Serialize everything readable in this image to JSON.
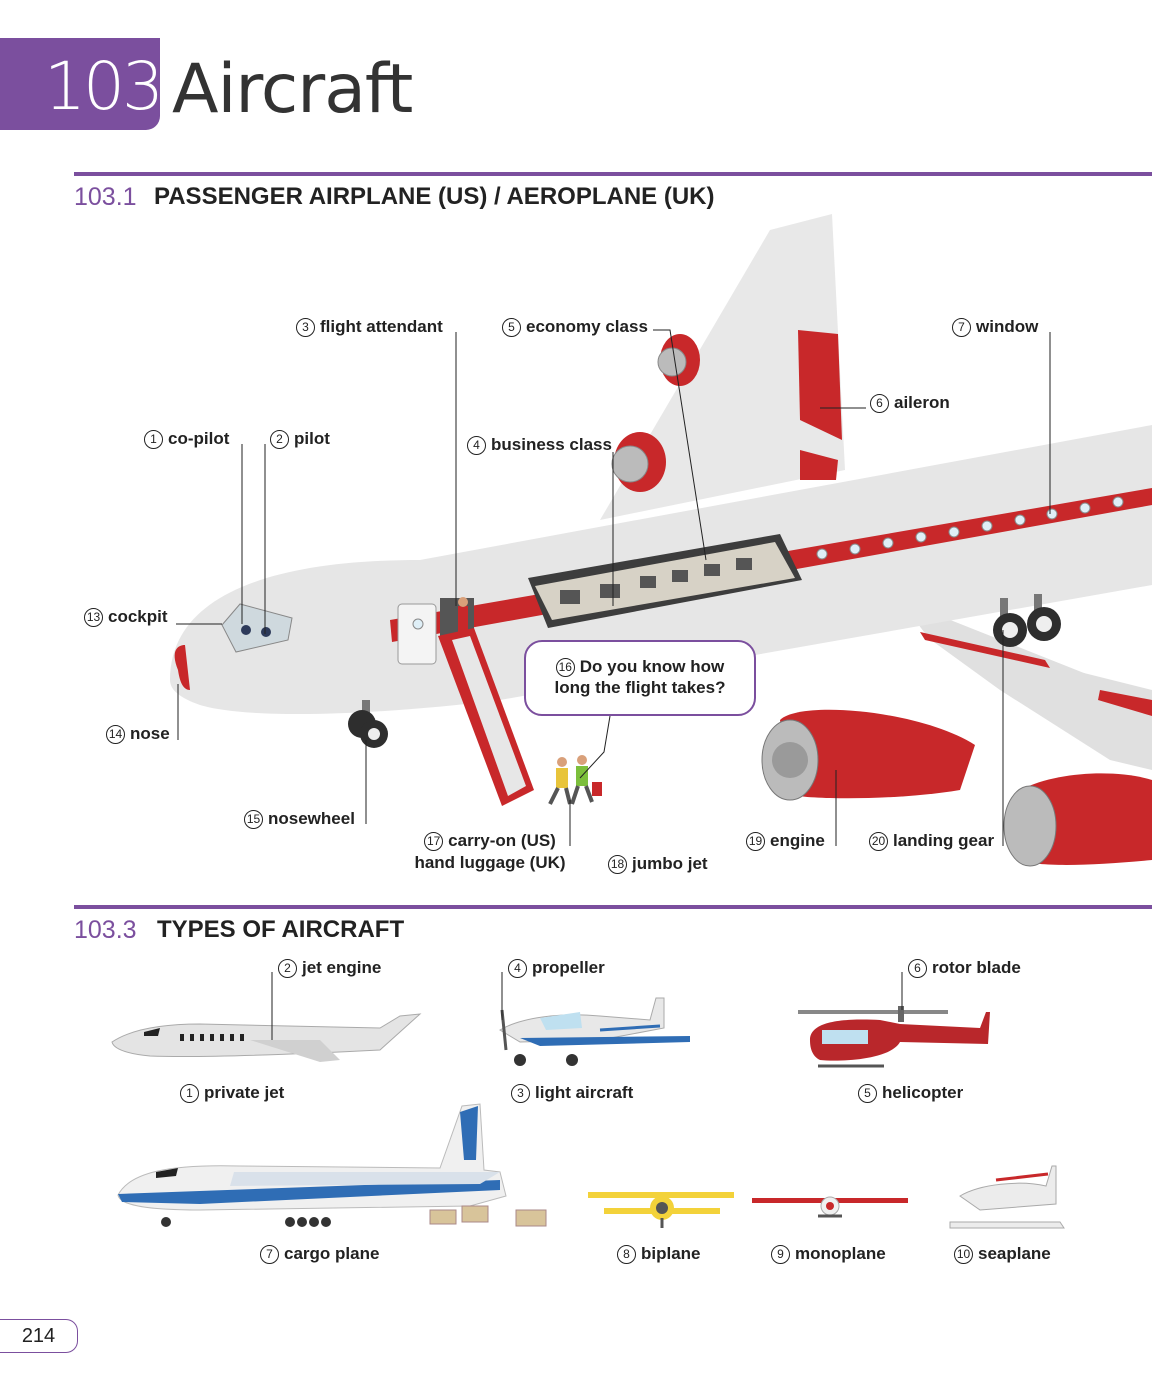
{
  "header": {
    "chapter_number": "103",
    "chapter_title": "Aircraft"
  },
  "section1": {
    "number": "103.1",
    "title": "PASSENGER AIRPLANE (US) / AEROPLANE (UK)",
    "labels": [
      {
        "n": "1",
        "text": "co-pilot"
      },
      {
        "n": "2",
        "text": "pilot"
      },
      {
        "n": "3",
        "text": "flight attendant"
      },
      {
        "n": "4",
        "text": "business class"
      },
      {
        "n": "5",
        "text": "economy class"
      },
      {
        "n": "6",
        "text": "aileron"
      },
      {
        "n": "7",
        "text": "window"
      },
      {
        "n": "13",
        "text": "cockpit"
      },
      {
        "n": "14",
        "text": "nose"
      },
      {
        "n": "15",
        "text": "nosewheel"
      },
      {
        "n": "17",
        "text": "carry-on (US)",
        "text2": "hand luggage (UK)"
      },
      {
        "n": "18",
        "text": "jumbo jet"
      },
      {
        "n": "19",
        "text": "engine"
      },
      {
        "n": "20",
        "text": "landing gear"
      }
    ],
    "speech": {
      "n": "16",
      "line1": "Do you know how",
      "line2": "long the flight takes?"
    }
  },
  "section3": {
    "number": "103.3",
    "title": "TYPES OF AIRCRAFT",
    "labels": [
      {
        "n": "1",
        "text": "private jet"
      },
      {
        "n": "2",
        "text": "jet engine"
      },
      {
        "n": "3",
        "text": "light aircraft"
      },
      {
        "n": "4",
        "text": "propeller"
      },
      {
        "n": "5",
        "text": "helicopter"
      },
      {
        "n": "6",
        "text": "rotor blade"
      },
      {
        "n": "7",
        "text": "cargo plane"
      },
      {
        "n": "8",
        "text": "biplane"
      },
      {
        "n": "9",
        "text": "monoplane"
      },
      {
        "n": "10",
        "text": "seaplane"
      }
    ]
  },
  "page_number": "214",
  "colors": {
    "accent": "#7b4f9e",
    "plane_red": "#c8282a",
    "plane_body": "#e6e6e6",
    "cargo_blue": "#2f6db5"
  }
}
